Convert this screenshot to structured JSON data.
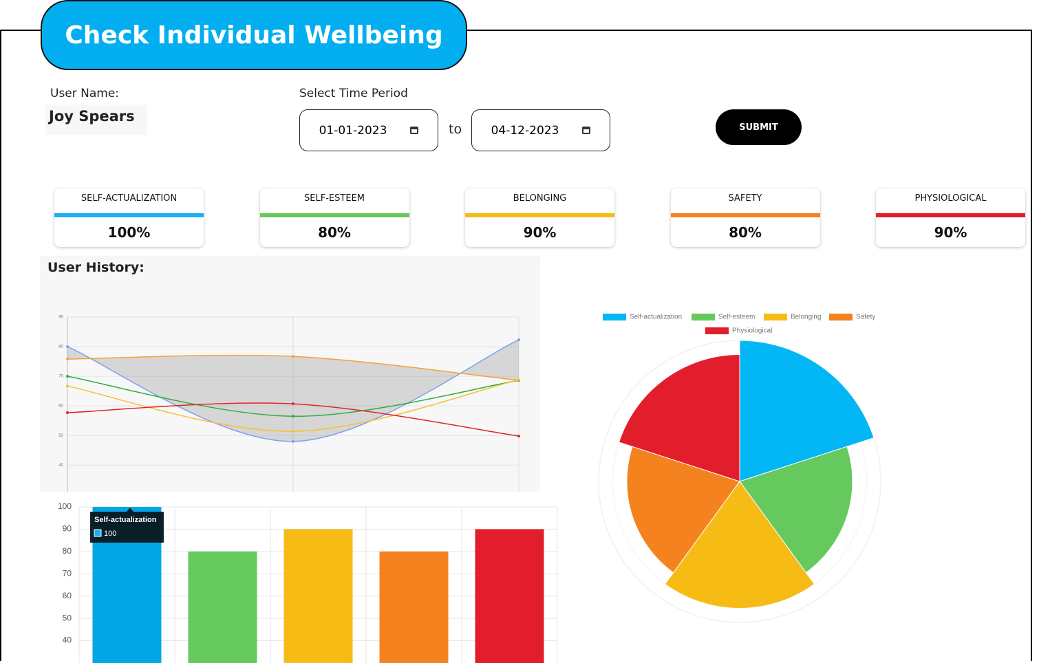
{
  "header": {
    "title": "Check Individual Wellbeing"
  },
  "form": {
    "user_label": "User Name:",
    "user_name": "Joy Spears",
    "period_label": "Select Time Period",
    "start_date": "01-01-2023",
    "separator": "to",
    "end_date": "04-12-2023",
    "submit": "SUBMIT"
  },
  "cards": [
    {
      "label": "SELF-ACTUALIZATION",
      "value": "100%",
      "color": "#1ab0ef"
    },
    {
      "label": "SELF-ESTEEM",
      "value": "80%",
      "color": "#66c95e"
    },
    {
      "label": "BELONGING",
      "value": "90%",
      "color": "#f6bb14"
    },
    {
      "label": "SAFETY",
      "value": "80%",
      "color": "#f4821f"
    },
    {
      "label": "PHYSIOLOGICAL",
      "value": "90%",
      "color": "#e31e2c"
    }
  ],
  "history_label": "User History:",
  "chart_data": [
    {
      "type": "line",
      "categories": [
        null,
        null,
        null
      ],
      "ylim": [
        31,
        90
      ],
      "yticks": [
        40,
        50,
        60,
        70,
        80,
        90
      ],
      "grid": true,
      "area_fill": "#8f8b8b",
      "series": [
        {
          "color": "#7e9ff0",
          "values": [
            80,
            48,
            82.3
          ]
        },
        {
          "color": "#f4a13a",
          "values": [
            75.8,
            76.7,
            68.6
          ]
        },
        {
          "color": "#2fad3a",
          "values": [
            70,
            56.5,
            68.6
          ]
        },
        {
          "color": "#f5c033",
          "values": [
            66.7,
            51.4,
            68.8
          ]
        },
        {
          "color": "#e0232d",
          "values": [
            57.7,
            60.7,
            49.8
          ]
        }
      ]
    },
    {
      "type": "bar",
      "categories": [
        null,
        null,
        null,
        null,
        null
      ],
      "values": [
        100,
        80,
        90,
        80,
        90
      ],
      "colors": [
        "#03a6e4",
        "#66c95e",
        "#f6bb14",
        "#f4821f",
        "#e31e2c"
      ],
      "ylim": [
        30,
        100
      ],
      "yticks": [
        40,
        50,
        60,
        70,
        80,
        90,
        100
      ],
      "grid": true,
      "tooltip": {
        "title": "Self-actualization",
        "value": 100,
        "color": "#1ab0ef"
      }
    },
    {
      "type": "polarArea",
      "categories": [
        "Self-actualization",
        "Self-esteem",
        "Belonging",
        "Safety",
        "Physiological"
      ],
      "values": [
        100,
        80,
        90,
        80,
        90
      ],
      "colors": [
        "#03b6f5",
        "#66c95e",
        "#f6bb14",
        "#f4821f",
        "#e31e2c"
      ],
      "rlim": [
        0,
        100
      ],
      "legend": "top"
    }
  ]
}
